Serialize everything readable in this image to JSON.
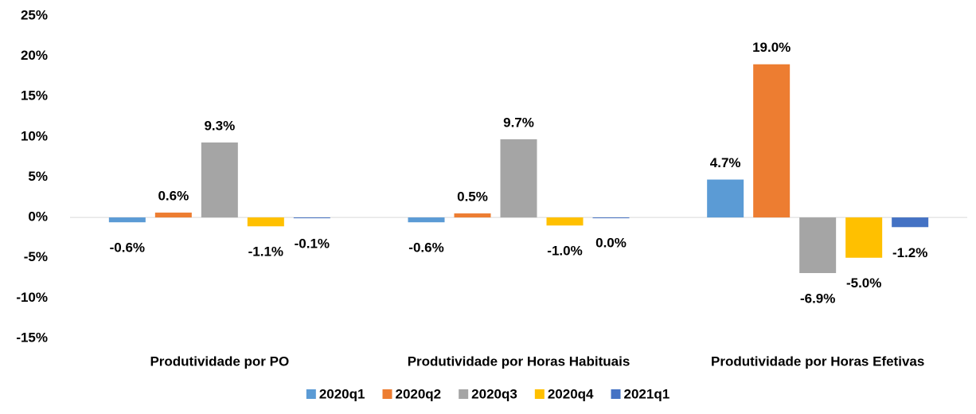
{
  "chart_data": {
    "type": "bar",
    "categories": [
      "Produtividade por PO",
      "Produtividade por Horas Habituais",
      "Produtividade por Horas Efetivas"
    ],
    "series": [
      {
        "name": "2020q1",
        "color": "#5b9bd5",
        "values": [
          -0.6,
          -0.6,
          4.7
        ],
        "value_labels": [
          "-0.6%",
          "-0.6%",
          "4.7%"
        ]
      },
      {
        "name": "2020q2",
        "color": "#ed7d31",
        "values": [
          0.6,
          0.5,
          19.0
        ],
        "value_labels": [
          "0.6%",
          "0.5%",
          "19.0%"
        ]
      },
      {
        "name": "2020q3",
        "color": "#a5a5a5",
        "values": [
          9.3,
          9.7,
          -6.9
        ],
        "value_labels": [
          "9.3%",
          "9.7%",
          "-6.9%"
        ]
      },
      {
        "name": "2020q4",
        "color": "#ffc000",
        "values": [
          -1.1,
          -1.0,
          -5.0
        ],
        "value_labels": [
          "-1.1%",
          "-1.0%",
          "-5.0%"
        ]
      },
      {
        "name": "2021q1",
        "color": "#4472c4",
        "values": [
          -0.1,
          0.0,
          -1.2
        ],
        "value_labels": [
          "-0.1%",
          "0.0%",
          "-1.2%"
        ]
      }
    ],
    "ylim": [
      -15,
      25
    ],
    "yticks": [
      {
        "value": -15,
        "label": "-15%"
      },
      {
        "value": -10,
        "label": "-10%"
      },
      {
        "value": -5,
        "label": "-5%"
      },
      {
        "value": 0,
        "label": "0%"
      },
      {
        "value": 5,
        "label": "5%"
      },
      {
        "value": 10,
        "label": "10%"
      },
      {
        "value": 15,
        "label": "15%"
      },
      {
        "value": 20,
        "label": "20%"
      },
      {
        "value": 25,
        "label": "25%"
      }
    ],
    "grid": false,
    "legend": "bottom"
  }
}
